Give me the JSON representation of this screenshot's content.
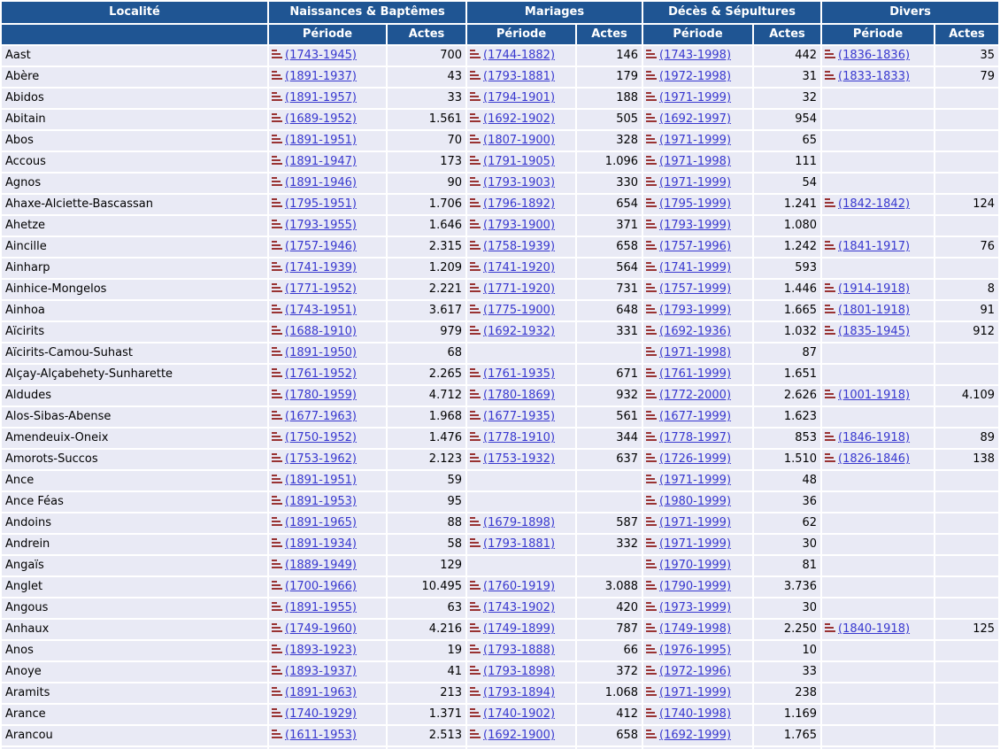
{
  "colors": {
    "header_bg": "#1F5593",
    "header_text": "#FFFFFF",
    "row_bg": "#E9EAF5",
    "link": "#3838CF",
    "text": "#000000",
    "icon": "#993333"
  },
  "table": {
    "columns": {
      "locality_label": "Localité",
      "groups": [
        {
          "id": "naissances",
          "label": "Naissances & Baptêmes"
        },
        {
          "id": "mariages",
          "label": "Mariages"
        },
        {
          "id": "deces",
          "label": "Décès & Sépultures"
        },
        {
          "id": "divers",
          "label": "Divers"
        }
      ],
      "periode_label": "Période",
      "actes_label": "Actes"
    },
    "icon_name": "records-list-icon",
    "rows": [
      {
        "locality": "Aast",
        "cells": {
          "naissances": {
            "periode": "(1743-1945)",
            "actes": "700"
          },
          "mariages": {
            "periode": "(1744-1882)",
            "actes": "146"
          },
          "deces": {
            "periode": "(1743-1998)",
            "actes": "442"
          },
          "divers": {
            "periode": "(1836-1836)",
            "actes": "35"
          }
        }
      },
      {
        "locality": "Abère",
        "cells": {
          "naissances": {
            "periode": "(1891-1937)",
            "actes": "43"
          },
          "mariages": {
            "periode": "(1793-1881)",
            "actes": "179"
          },
          "deces": {
            "periode": "(1972-1998)",
            "actes": "31"
          },
          "divers": {
            "periode": "(1833-1833)",
            "actes": "79"
          }
        }
      },
      {
        "locality": "Abidos",
        "cells": {
          "naissances": {
            "periode": "(1891-1957)",
            "actes": "33"
          },
          "mariages": {
            "periode": "(1794-1901)",
            "actes": "188"
          },
          "deces": {
            "periode": "(1971-1999)",
            "actes": "32"
          },
          "divers": null
        }
      },
      {
        "locality": "Abitain",
        "cells": {
          "naissances": {
            "periode": "(1689-1952)",
            "actes": "1.561"
          },
          "mariages": {
            "periode": "(1692-1902)",
            "actes": "505"
          },
          "deces": {
            "periode": "(1692-1997)",
            "actes": "954"
          },
          "divers": null
        }
      },
      {
        "locality": "Abos",
        "cells": {
          "naissances": {
            "periode": "(1891-1951)",
            "actes": "70"
          },
          "mariages": {
            "periode": "(1807-1900)",
            "actes": "328"
          },
          "deces": {
            "periode": "(1971-1999)",
            "actes": "65"
          },
          "divers": null
        }
      },
      {
        "locality": "Accous",
        "cells": {
          "naissances": {
            "periode": "(1891-1947)",
            "actes": "173"
          },
          "mariages": {
            "periode": "(1791-1905)",
            "actes": "1.096"
          },
          "deces": {
            "periode": "(1971-1998)",
            "actes": "111"
          },
          "divers": null
        }
      },
      {
        "locality": "Agnos",
        "cells": {
          "naissances": {
            "periode": "(1891-1946)",
            "actes": "90"
          },
          "mariages": {
            "periode": "(1793-1903)",
            "actes": "330"
          },
          "deces": {
            "periode": "(1971-1999)",
            "actes": "54"
          },
          "divers": null
        }
      },
      {
        "locality": "Ahaxe-Alciette-Bascassan",
        "cells": {
          "naissances": {
            "periode": "(1795-1951)",
            "actes": "1.706"
          },
          "mariages": {
            "periode": "(1796-1892)",
            "actes": "654"
          },
          "deces": {
            "periode": "(1795-1999)",
            "actes": "1.241"
          },
          "divers": {
            "periode": "(1842-1842)",
            "actes": "124"
          }
        }
      },
      {
        "locality": "Ahetze",
        "cells": {
          "naissances": {
            "periode": "(1793-1955)",
            "actes": "1.646"
          },
          "mariages": {
            "periode": "(1793-1900)",
            "actes": "371"
          },
          "deces": {
            "periode": "(1793-1999)",
            "actes": "1.080"
          },
          "divers": null
        }
      },
      {
        "locality": "Aincille",
        "cells": {
          "naissances": {
            "periode": "(1757-1946)",
            "actes": "2.315"
          },
          "mariages": {
            "periode": "(1758-1939)",
            "actes": "658"
          },
          "deces": {
            "periode": "(1757-1996)",
            "actes": "1.242"
          },
          "divers": {
            "periode": "(1841-1917)",
            "actes": "76"
          }
        }
      },
      {
        "locality": "Ainharp",
        "cells": {
          "naissances": {
            "periode": "(1741-1939)",
            "actes": "1.209"
          },
          "mariages": {
            "periode": "(1741-1920)",
            "actes": "564"
          },
          "deces": {
            "periode": "(1741-1999)",
            "actes": "593"
          },
          "divers": null
        }
      },
      {
        "locality": "Ainhice-Mongelos",
        "cells": {
          "naissances": {
            "periode": "(1771-1952)",
            "actes": "2.221"
          },
          "mariages": {
            "periode": "(1771-1920)",
            "actes": "731"
          },
          "deces": {
            "periode": "(1757-1999)",
            "actes": "1.446"
          },
          "divers": {
            "periode": "(1914-1918)",
            "actes": "8"
          }
        }
      },
      {
        "locality": "Ainhoa",
        "cells": {
          "naissances": {
            "periode": "(1743-1951)",
            "actes": "3.617"
          },
          "mariages": {
            "periode": "(1775-1900)",
            "actes": "648"
          },
          "deces": {
            "periode": "(1793-1999)",
            "actes": "1.665"
          },
          "divers": {
            "periode": "(1801-1918)",
            "actes": "91"
          }
        }
      },
      {
        "locality": "Aïcirits",
        "cells": {
          "naissances": {
            "periode": "(1688-1910)",
            "actes": "979"
          },
          "mariages": {
            "periode": "(1692-1932)",
            "actes": "331"
          },
          "deces": {
            "periode": "(1692-1936)",
            "actes": "1.032"
          },
          "divers": {
            "periode": "(1835-1945)",
            "actes": "912"
          }
        }
      },
      {
        "locality": "Aïcirits-Camou-Suhast",
        "cells": {
          "naissances": {
            "periode": "(1891-1950)",
            "actes": "68"
          },
          "mariages": null,
          "deces": {
            "periode": "(1971-1998)",
            "actes": "87"
          },
          "divers": null
        }
      },
      {
        "locality": "Alçay-Alçabehety-Sunharette",
        "cells": {
          "naissances": {
            "periode": "(1761-1952)",
            "actes": "2.265"
          },
          "mariages": {
            "periode": "(1761-1935)",
            "actes": "671"
          },
          "deces": {
            "periode": "(1761-1999)",
            "actes": "1.651"
          },
          "divers": null
        }
      },
      {
        "locality": "Aldudes",
        "cells": {
          "naissances": {
            "periode": "(1780-1959)",
            "actes": "4.712"
          },
          "mariages": {
            "periode": "(1780-1869)",
            "actes": "932"
          },
          "deces": {
            "periode": "(1772-2000)",
            "actes": "2.626"
          },
          "divers": {
            "periode": "(1001-1918)",
            "actes": "4.109"
          }
        }
      },
      {
        "locality": "Alos-Sibas-Abense",
        "cells": {
          "naissances": {
            "periode": "(1677-1963)",
            "actes": "1.968"
          },
          "mariages": {
            "periode": "(1677-1935)",
            "actes": "561"
          },
          "deces": {
            "periode": "(1677-1999)",
            "actes": "1.623"
          },
          "divers": null
        }
      },
      {
        "locality": "Amendeuix-Oneix",
        "cells": {
          "naissances": {
            "periode": "(1750-1952)",
            "actes": "1.476"
          },
          "mariages": {
            "periode": "(1778-1910)",
            "actes": "344"
          },
          "deces": {
            "periode": "(1778-1997)",
            "actes": "853"
          },
          "divers": {
            "periode": "(1846-1918)",
            "actes": "89"
          }
        }
      },
      {
        "locality": "Amorots-Succos",
        "cells": {
          "naissances": {
            "periode": "(1753-1962)",
            "actes": "2.123"
          },
          "mariages": {
            "periode": "(1753-1932)",
            "actes": "637"
          },
          "deces": {
            "periode": "(1726-1999)",
            "actes": "1.510"
          },
          "divers": {
            "periode": "(1826-1846)",
            "actes": "138"
          }
        }
      },
      {
        "locality": "Ance",
        "cells": {
          "naissances": {
            "periode": "(1891-1951)",
            "actes": "59"
          },
          "mariages": null,
          "deces": {
            "periode": "(1971-1999)",
            "actes": "48"
          },
          "divers": null
        }
      },
      {
        "locality": "Ance Féas",
        "cells": {
          "naissances": {
            "periode": "(1891-1953)",
            "actes": "95"
          },
          "mariages": null,
          "deces": {
            "periode": "(1980-1999)",
            "actes": "36"
          },
          "divers": null
        }
      },
      {
        "locality": "Andoins",
        "cells": {
          "naissances": {
            "periode": "(1891-1965)",
            "actes": "88"
          },
          "mariages": {
            "periode": "(1679-1898)",
            "actes": "587"
          },
          "deces": {
            "periode": "(1971-1999)",
            "actes": "62"
          },
          "divers": null
        }
      },
      {
        "locality": "Andrein",
        "cells": {
          "naissances": {
            "periode": "(1891-1934)",
            "actes": "58"
          },
          "mariages": {
            "periode": "(1793-1881)",
            "actes": "332"
          },
          "deces": {
            "periode": "(1971-1999)",
            "actes": "30"
          },
          "divers": null
        }
      },
      {
        "locality": "Angaïs",
        "cells": {
          "naissances": {
            "periode": "(1889-1949)",
            "actes": "129"
          },
          "mariages": null,
          "deces": {
            "periode": "(1970-1999)",
            "actes": "81"
          },
          "divers": null
        }
      },
      {
        "locality": "Anglet",
        "cells": {
          "naissances": {
            "periode": "(1700-1966)",
            "actes": "10.495"
          },
          "mariages": {
            "periode": "(1760-1919)",
            "actes": "3.088"
          },
          "deces": {
            "periode": "(1790-1999)",
            "actes": "3.736"
          },
          "divers": null
        }
      },
      {
        "locality": "Angous",
        "cells": {
          "naissances": {
            "periode": "(1891-1955)",
            "actes": "63"
          },
          "mariages": {
            "periode": "(1743-1902)",
            "actes": "420"
          },
          "deces": {
            "periode": "(1973-1999)",
            "actes": "30"
          },
          "divers": null
        }
      },
      {
        "locality": "Anhaux",
        "cells": {
          "naissances": {
            "periode": "(1749-1960)",
            "actes": "4.216"
          },
          "mariages": {
            "periode": "(1749-1899)",
            "actes": "787"
          },
          "deces": {
            "periode": "(1749-1998)",
            "actes": "2.250"
          },
          "divers": {
            "periode": "(1840-1918)",
            "actes": "125"
          }
        }
      },
      {
        "locality": "Anos",
        "cells": {
          "naissances": {
            "periode": "(1893-1923)",
            "actes": "19"
          },
          "mariages": {
            "periode": "(1793-1888)",
            "actes": "66"
          },
          "deces": {
            "periode": "(1976-1995)",
            "actes": "10"
          },
          "divers": null
        }
      },
      {
        "locality": "Anoye",
        "cells": {
          "naissances": {
            "periode": "(1893-1937)",
            "actes": "41"
          },
          "mariages": {
            "periode": "(1793-1898)",
            "actes": "372"
          },
          "deces": {
            "periode": "(1972-1996)",
            "actes": "33"
          },
          "divers": null
        }
      },
      {
        "locality": "Aramits",
        "cells": {
          "naissances": {
            "periode": "(1891-1963)",
            "actes": "213"
          },
          "mariages": {
            "periode": "(1793-1894)",
            "actes": "1.068"
          },
          "deces": {
            "periode": "(1971-1999)",
            "actes": "238"
          },
          "divers": null
        }
      },
      {
        "locality": "Arance",
        "cells": {
          "naissances": {
            "periode": "(1740-1929)",
            "actes": "1.371"
          },
          "mariages": {
            "periode": "(1740-1902)",
            "actes": "412"
          },
          "deces": {
            "periode": "(1740-1998)",
            "actes": "1.169"
          },
          "divers": null
        }
      },
      {
        "locality": "Arancou",
        "cells": {
          "naissances": {
            "periode": "(1611-1953)",
            "actes": "2.513"
          },
          "mariages": {
            "periode": "(1692-1900)",
            "actes": "658"
          },
          "deces": {
            "periode": "(1692-1999)",
            "actes": "1.765"
          },
          "divers": null
        }
      },
      {
        "locality": "",
        "cells": {
          "naissances": null,
          "mariages": null,
          "deces": null,
          "divers": null
        }
      }
    ]
  }
}
